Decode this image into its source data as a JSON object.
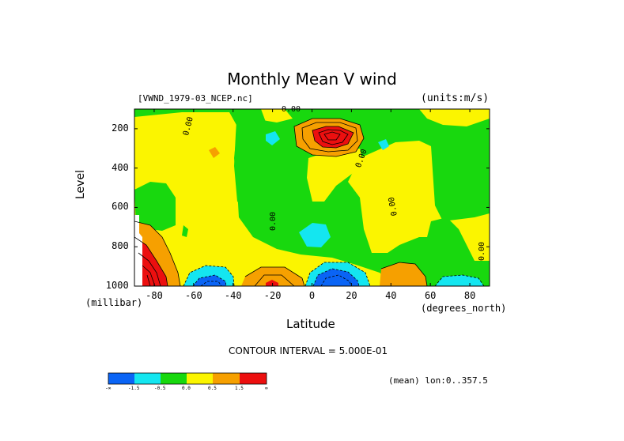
{
  "colors": {
    "c1": "#0a64f5",
    "c2": "#14e6f0",
    "c3": "#18d80e",
    "c4": "#fbf500",
    "c5": "#f6a000",
    "c6": "#ec0f0f",
    "missing": "#ffffff"
  },
  "chart_data": {
    "type": "contour",
    "title": "Monthly Mean V wind",
    "dataset": "[VWND_1979-03_NCEP.nc]",
    "units": "(units:m/s)",
    "xlabel": "Latitude",
    "x_unit": "(degrees_north)",
    "ylabel": "Level",
    "y_unit": "(millibar)",
    "xlim": [
      -90,
      90
    ],
    "ylim": [
      1000,
      100
    ],
    "x_ticks": [
      "-80",
      "-60",
      "-40",
      "-20",
      "0",
      "20",
      "40",
      "60",
      "80"
    ],
    "y_ticks": [
      "200",
      "400",
      "600",
      "800",
      "1000"
    ],
    "contour_interval_label": "CONTOUR INTERVAL = 5.000E-01",
    "zero_contour_label": "0.00",
    "footer": "(mean) lon:0..357.5",
    "colorbar": {
      "labels": [
        "-∞",
        "-1.5",
        "-0.5",
        "0.0",
        "0.5",
        "1.5",
        "∞"
      ]
    },
    "features": [
      {
        "kind": "band",
        "x": [
          -90,
          -70
        ],
        "level": [
          280,
          1000
        ],
        "value_class": "positive",
        "note": "south pole low levels"
      },
      {
        "kind": "max",
        "lat": 12,
        "level": 160,
        "value_class": "strong_positive"
      },
      {
        "kind": "min",
        "lat": 12,
        "level": 980,
        "value_class": "strong_negative"
      },
      {
        "kind": "min",
        "lat": -55,
        "level": 990,
        "value_class": "negative"
      },
      {
        "kind": "max",
        "lat": -20,
        "level": 990,
        "value_class": "positive"
      },
      {
        "kind": "min",
        "lat": 75,
        "level": 990,
        "value_class": "negative"
      },
      {
        "kind": "min",
        "lat": 2,
        "level": 720,
        "value_class": "weak_negative"
      }
    ]
  }
}
